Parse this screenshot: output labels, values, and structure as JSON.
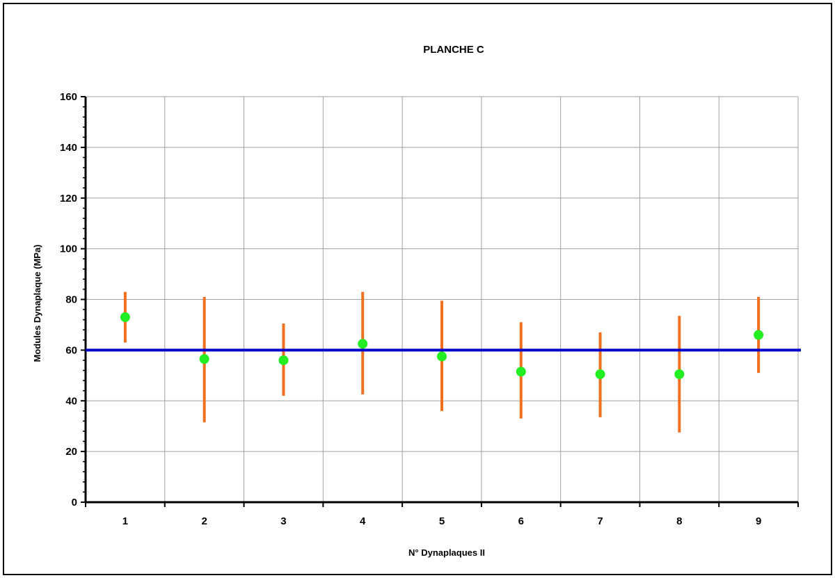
{
  "chart_data": {
    "type": "scatter",
    "title": "PLANCHE  C",
    "xlabel": "N° Dynaplaques II",
    "ylabel": "Modules Dynaplaque (MPa)",
    "ylim": [
      0,
      160
    ],
    "yticks": [
      0,
      20,
      40,
      60,
      80,
      100,
      120,
      140,
      160
    ],
    "categories": [
      "1",
      "2",
      "3",
      "4",
      "5",
      "6",
      "7",
      "8",
      "9"
    ],
    "grid": true,
    "series": [
      {
        "type": "scatter",
        "color": "#22ee22",
        "values": [
          73,
          56.5,
          56,
          62.5,
          57.5,
          51.5,
          50.5,
          50.5,
          66
        ]
      },
      {
        "type": "range",
        "color": "#f07020",
        "low": [
          63,
          31.5,
          42,
          42.5,
          36,
          33,
          33.5,
          27.5,
          51
        ],
        "high": [
          83,
          81,
          70.5,
          83,
          79.5,
          71,
          67,
          73.5,
          81
        ]
      },
      {
        "type": "reference-line",
        "color": "#0000cc",
        "value": 60
      }
    ]
  }
}
